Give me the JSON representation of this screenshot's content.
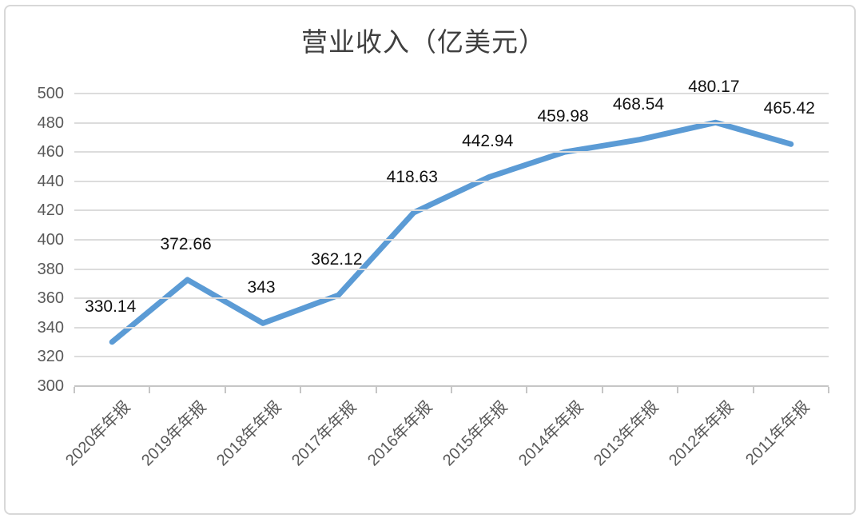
{
  "chart_data": {
    "type": "line",
    "title": "营业收入（亿美元）",
    "categories": [
      "2020年年报",
      "2019年年报",
      "2018年年报",
      "2017年年报",
      "2016年年报",
      "2015年年报",
      "2014年年报",
      "2013年年报",
      "2012年年报",
      "2011年年报"
    ],
    "series": [
      {
        "name": "营业收入",
        "values": [
          330.14,
          372.66,
          343,
          362.12,
          418.63,
          442.94,
          459.98,
          468.54,
          480.17,
          465.42
        ],
        "point_labels": [
          "330.14",
          "372.66",
          "343",
          "362.12",
          "418.63",
          "442.94",
          "459.98",
          "468.54",
          "480.17",
          "465.42"
        ]
      }
    ],
    "xlabel": "",
    "ylabel": "",
    "ylim": [
      300,
      500
    ],
    "y_ticks": [
      500,
      480,
      460,
      440,
      420,
      400,
      380,
      360,
      340,
      320,
      300
    ],
    "grid": true,
    "legend_position": "none"
  },
  "colors": {
    "series_line": "#5b9bd5",
    "gridline": "#dcdcdc",
    "axis": "#c6c6c6",
    "tick_label": "#595959",
    "data_label": "#111111",
    "title": "#3f3f3f",
    "frame_border": "#d8d8d8",
    "background": "#ffffff"
  }
}
